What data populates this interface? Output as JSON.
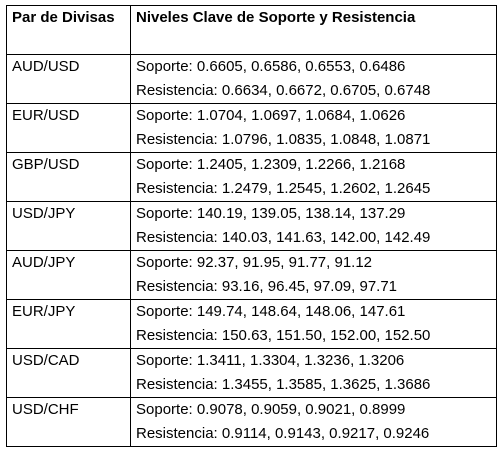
{
  "table": {
    "headers": [
      "Par de Divisas",
      "Niveles Clave de Soporte y Resistencia"
    ],
    "rows": [
      {
        "pair": "AUD/USD",
        "support": "Soporte: 0.6605, 0.6586, 0.6553, 0.6486",
        "resistance": "Resistencia: 0.6634, 0.6672, 0.6705, 0.6748"
      },
      {
        "pair": "EUR/USD",
        "support": "Soporte: 1.0704, 1.0697, 1.0684, 1.0626",
        "resistance": "Resistencia: 1.0796, 1.0835, 1.0848, 1.0871"
      },
      {
        "pair": "GBP/USD",
        "support": "Soporte: 1.2405, 1.2309, 1.2266, 1.2168",
        "resistance": "Resistencia: 1.2479, 1.2545, 1.2602, 1.2645"
      },
      {
        "pair": "USD/JPY",
        "support": "Soporte: 140.19, 139.05, 138.14, 137.29",
        "resistance": "Resistencia: 140.03, 141.63, 142.00, 142.49"
      },
      {
        "pair": "AUD/JPY",
        "support": "Soporte: 92.37, 91.95, 91.77, 91.12",
        "resistance": "Resistencia: 93.16, 96.45, 97.09, 97.71"
      },
      {
        "pair": "EUR/JPY",
        "support": "Soporte: 149.74, 148.64, 148.06, 147.61",
        "resistance": "Resistencia: 150.63, 151.50, 152.00, 152.50"
      },
      {
        "pair": "USD/CAD",
        "support": "Soporte: 1.3411, 1.3304, 1.3236, 1.3206",
        "resistance": "Resistencia: 1.3455, 1.3585, 1.3625, 1.3686"
      },
      {
        "pair": "USD/CHF",
        "support": "Soporte: 0.9078, 0.9059, 0.9021, 0.8999",
        "resistance": "Resistencia: 0.9114, 0.9143, 0.9217, 0.9246"
      }
    ]
  }
}
